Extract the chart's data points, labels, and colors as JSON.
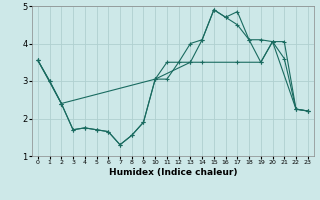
{
  "xlabel": "Humidex (Indice chaleur)",
  "xlim": [
    -0.5,
    23.5
  ],
  "ylim": [
    1,
    5
  ],
  "xticks": [
    0,
    1,
    2,
    3,
    4,
    5,
    6,
    7,
    8,
    9,
    10,
    11,
    12,
    13,
    14,
    15,
    16,
    17,
    18,
    19,
    20,
    21,
    22,
    23
  ],
  "yticks": [
    1,
    2,
    3,
    4,
    5
  ],
  "bg_color": "#cde8e8",
  "grid_color": "#b0d0d0",
  "line_color": "#1a6b60",
  "line1_x": [
    0,
    1,
    2,
    3,
    4,
    5,
    6,
    7,
    8,
    9,
    10,
    11,
    12,
    13,
    14,
    15,
    16,
    17,
    18,
    19,
    20,
    21,
    22,
    23
  ],
  "line1_y": [
    3.55,
    3.0,
    2.4,
    1.7,
    1.75,
    1.7,
    1.65,
    1.3,
    1.55,
    1.9,
    3.05,
    3.05,
    3.5,
    4.0,
    4.1,
    4.9,
    4.7,
    4.85,
    4.1,
    4.1,
    4.05,
    3.6,
    2.25,
    2.2
  ],
  "line2_x": [
    0,
    1,
    2,
    10,
    11,
    13,
    14,
    17,
    19,
    20,
    21,
    22,
    23
  ],
  "line2_y": [
    3.55,
    3.0,
    2.4,
    3.05,
    3.5,
    3.5,
    3.5,
    3.5,
    3.5,
    4.05,
    4.05,
    2.25,
    2.2
  ],
  "line3_x": [
    0,
    2,
    3,
    4,
    5,
    6,
    7,
    8,
    9,
    10,
    13,
    14,
    15,
    16,
    17,
    18,
    19,
    20,
    22,
    23
  ],
  "line3_y": [
    3.55,
    2.4,
    1.7,
    1.75,
    1.7,
    1.65,
    1.3,
    1.55,
    1.9,
    3.05,
    3.5,
    4.1,
    4.9,
    4.7,
    4.5,
    4.1,
    3.5,
    4.05,
    2.25,
    2.2
  ]
}
